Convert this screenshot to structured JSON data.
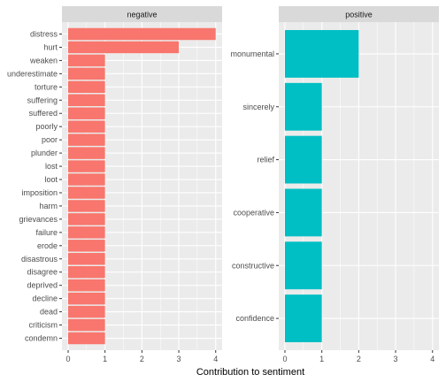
{
  "chart_data": {
    "type": "bar",
    "orientation": "horizontal",
    "xlabel": "Contribution to sentiment",
    "ylabel": "",
    "xlim": [
      0,
      4.15
    ],
    "xticks": [
      0,
      1,
      2,
      3,
      4
    ],
    "grid": true,
    "legend": "none",
    "facets": [
      {
        "name": "negative",
        "color": "#F8766D",
        "categories": [
          "distress",
          "hurt",
          "weaken",
          "underestimate",
          "torture",
          "suffering",
          "suffered",
          "poorly",
          "poor",
          "plunder",
          "lost",
          "loot",
          "imposition",
          "harm",
          "grievances",
          "failure",
          "erode",
          "disastrous",
          "disagree",
          "deprived",
          "decline",
          "dead",
          "criticism",
          "condemn"
        ],
        "values": [
          4,
          3,
          1,
          1,
          1,
          1,
          1,
          1,
          1,
          1,
          1,
          1,
          1,
          1,
          1,
          1,
          1,
          1,
          1,
          1,
          1,
          1,
          1,
          1
        ]
      },
      {
        "name": "positive",
        "color": "#00BFC4",
        "categories": [
          "monumental",
          "sincerely",
          "relief",
          "cooperative",
          "constructive",
          "confidence"
        ],
        "values": [
          2,
          1,
          1,
          1,
          1,
          1
        ]
      }
    ]
  },
  "colors": {
    "panel_background": "#EBEBEB",
    "strip_background": "#D9D9D9",
    "gridline": "#FFFFFF"
  }
}
